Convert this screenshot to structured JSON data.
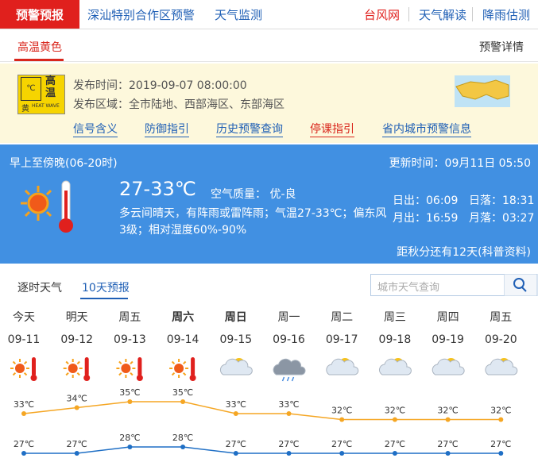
{
  "nav": {
    "active": "预警预报",
    "left": [
      "深汕特别合作区预警",
      "天气监测"
    ],
    "right": [
      "台风网",
      "天气解读",
      "降雨估测"
    ]
  },
  "alert": {
    "tab": "高温黄色",
    "details": "预警详情",
    "icon": {
      "unit": "℃",
      "title": "高温",
      "level": "黄",
      "english": "HEAT WAVE"
    },
    "time": "发布时间：2019-09-07 08:00:00",
    "area": "发布区域：全市陆地、西部海区、东部海区",
    "links": [
      "信号含义",
      "防御指引",
      "历史预警查询",
      "停课指引",
      "省内城市预警信息"
    ]
  },
  "current": {
    "period": "早上至傍晚(06-20时)",
    "update": "更新时间：09月11日 05:50",
    "temp": "27-33℃",
    "air": "空气质量： 优-良",
    "desc": [
      "多云间晴天，有阵雨或雷阵雨；气温27-33℃；偏东风",
      "3级；相对湿度60%-90%"
    ],
    "sunrise": "日出：06:09",
    "sunset": "日落：18:31",
    "moonrise": "月出：16:59",
    "moonset": "月落：03:27",
    "equinox": "距秋分还有12天(科普资料)"
  },
  "tabs": [
    "逐时天气",
    "10天预报"
  ],
  "search": "城市天气查询",
  "forecast": {
    "type": "line",
    "days": [
      "今天",
      "明天",
      "周五",
      "周六",
      "周日",
      "周一",
      "周二",
      "周三",
      "周四",
      "周五"
    ],
    "dates": [
      "09-11",
      "09-12",
      "09-13",
      "09-14",
      "09-15",
      "09-16",
      "09-17",
      "09-18",
      "09-19",
      "09-20"
    ],
    "series": [
      {
        "color": "#f5a623",
        "values": [
          33,
          34,
          35,
          35,
          33,
          33,
          32,
          32,
          32,
          32
        ],
        "value_labels": [
          "33℃",
          "34℃",
          "35℃",
          "35℃",
          "33℃",
          "33℃",
          "32℃",
          "32℃",
          "32℃",
          "32℃"
        ]
      },
      {
        "color": "#1f6fc5",
        "values": [
          27,
          27,
          28,
          28,
          27,
          27,
          27,
          27,
          27,
          27
        ],
        "value_labels": [
          "27℃",
          "27℃",
          "28℃",
          "28℃",
          "27℃",
          "27℃",
          "27℃",
          "27℃",
          "27℃",
          "27℃"
        ]
      }
    ]
  }
}
